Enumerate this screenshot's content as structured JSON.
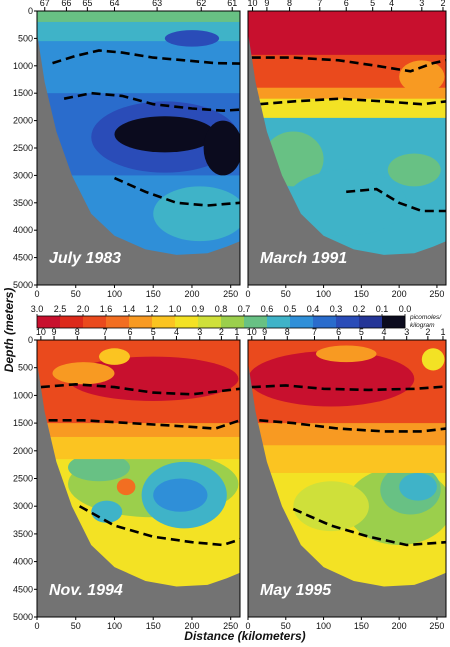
{
  "chart_data": {
    "type": "heatmap",
    "ylabel": "Depth (meters)",
    "xlabel": "Distance (kilometers)",
    "x_ticks": [
      0,
      50,
      100,
      150,
      200,
      250
    ],
    "x_range": [
      0,
      262
    ],
    "y_ticks": [
      0,
      500,
      1000,
      1500,
      2000,
      2500,
      3000,
      3500,
      4000,
      4500,
      5000
    ],
    "y_range": [
      0,
      5000
    ],
    "colorbar": {
      "unit": "picomoles/ kilogram",
      "labels": [
        "3.0",
        "2.5",
        "2.0",
        "1.6",
        "1.4",
        "1.2",
        "1.0",
        "0.9",
        "0.8",
        "0.7",
        "0.6",
        "0.5",
        "0.4",
        "0.3",
        "0.2",
        "0.1",
        "0.0"
      ],
      "colors": [
        "#c8102e",
        "#dc2a1a",
        "#ea4a1d",
        "#f26e21",
        "#f89a22",
        "#fbc421",
        "#f3e224",
        "#cfe03a",
        "#9bcf4c",
        "#68c184",
        "#3fb3c8",
        "#2f8fd8",
        "#2a6ccc",
        "#2a4cb8",
        "#243597",
        "#0b0b1e"
      ]
    },
    "bottom_profile": [
      [
        0,
        400
      ],
      [
        10,
        1300
      ],
      [
        25,
        2200
      ],
      [
        45,
        3000
      ],
      [
        70,
        3700
      ],
      [
        100,
        4100
      ],
      [
        140,
        4350
      ],
      [
        180,
        4450
      ],
      [
        220,
        4420
      ],
      [
        245,
        4300
      ],
      [
        262,
        4200
      ]
    ],
    "panels": [
      {
        "title": "July 1983",
        "stations": [
          "67",
          "66",
          "65",
          "64",
          "63",
          "62",
          "61"
        ],
        "station_x": [
          10,
          38,
          65,
          100,
          155,
          212,
          252
        ],
        "color_layers": [
          {
            "color": "#2f8fd8",
            "shape": "band",
            "top": 0,
            "bottom": 1500
          },
          {
            "color": "#3fb3c8",
            "shape": "band",
            "top": 0,
            "bottom": 550
          },
          {
            "color": "#68c184",
            "shape": "band",
            "top": 0,
            "bottom": 200
          },
          {
            "color": "#2a6ccc",
            "shape": "band",
            "top": 1500,
            "bottom": 3000
          },
          {
            "color": "#2a4cb8",
            "shape": "blob",
            "x": 165,
            "y": 2300,
            "rx": 95,
            "ry": 650
          },
          {
            "color": "#0b0b1e",
            "shape": "blob",
            "x": 165,
            "y": 2250,
            "rx": 65,
            "ry": 330
          },
          {
            "color": "#0b0b1e",
            "shape": "blob",
            "x": 240,
            "y": 2500,
            "rx": 25,
            "ry": 500
          },
          {
            "color": "#2a4cb8",
            "shape": "blob",
            "x": 200,
            "y": 500,
            "rx": 35,
            "ry": 150
          },
          {
            "color": "#3fb3c8",
            "shape": "blob",
            "x": 210,
            "y": 3700,
            "rx": 60,
            "ry": 500
          }
        ],
        "isolines": [
          [
            [
              20,
              950
            ],
            [
              50,
              820
            ],
            [
              80,
              720
            ],
            [
              110,
              760
            ],
            [
              150,
              850
            ],
            [
              190,
              900
            ],
            [
              230,
              950
            ],
            [
              262,
              960
            ]
          ],
          [
            [
              35,
              1600
            ],
            [
              70,
              1500
            ],
            [
              110,
              1550
            ],
            [
              150,
              1700
            ],
            [
              200,
              1780
            ],
            [
              240,
              1820
            ],
            [
              262,
              1800
            ]
          ],
          [
            [
              100,
              3050
            ],
            [
              140,
              3300
            ],
            [
              180,
              3500
            ],
            [
              220,
              3550
            ],
            [
              262,
              3500
            ]
          ]
        ]
      },
      {
        "title": "March 1991",
        "stations": [
          "10",
          "9",
          "8",
          "7",
          "6",
          "5",
          "4",
          "3",
          "2"
        ],
        "station_x": [
          6,
          25,
          55,
          95,
          130,
          165,
          190,
          230,
          258
        ],
        "color_layers": [
          {
            "color": "#9bcf4c",
            "shape": "band",
            "top": 2600,
            "bottom": 5000
          },
          {
            "color": "#3fb3c8",
            "shape": "band",
            "top": 1800,
            "bottom": 5000
          },
          {
            "color": "#68c184",
            "shape": "blob",
            "x": 60,
            "y": 2700,
            "rx": 40,
            "ry": 500
          },
          {
            "color": "#68c184",
            "shape": "blob",
            "x": 220,
            "y": 2900,
            "rx": 35,
            "ry": 300
          },
          {
            "color": "#3fb3c8",
            "shape": "blob",
            "x": 130,
            "y": 3500,
            "rx": 80,
            "ry": 600
          },
          {
            "color": "#f3e224",
            "shape": "band",
            "top": 1500,
            "bottom": 1950
          },
          {
            "color": "#f89a22",
            "shape": "band",
            "top": 1200,
            "bottom": 1600
          },
          {
            "color": "#ea4a1d",
            "shape": "band",
            "top": 0,
            "bottom": 1400
          },
          {
            "color": "#c8102e",
            "shape": "band",
            "top": 0,
            "bottom": 800
          },
          {
            "color": "#f89a22",
            "shape": "blob",
            "x": 230,
            "y": 1200,
            "rx": 30,
            "ry": 300
          }
        ],
        "isolines": [
          [
            [
              5,
              850
            ],
            [
              60,
              850
            ],
            [
              120,
              900
            ],
            [
              170,
              1000
            ],
            [
              215,
              1100
            ],
            [
              245,
              950
            ],
            [
              262,
              900
            ]
          ],
          [
            [
              15,
              1700
            ],
            [
              60,
              1650
            ],
            [
              120,
              1600
            ],
            [
              180,
              1650
            ],
            [
              230,
              1700
            ],
            [
              262,
              1650
            ]
          ],
          [
            [
              130,
              3300
            ],
            [
              170,
              3250
            ],
            [
              200,
              3500
            ],
            [
              230,
              3650
            ],
            [
              262,
              3650
            ]
          ]
        ]
      },
      {
        "title": "Nov. 1994",
        "stations": [
          "10",
          "9",
          "8",
          "7",
          "6",
          "5",
          "4",
          "3",
          "2",
          "1"
        ],
        "station_x": [
          5,
          22,
          52,
          88,
          120,
          150,
          180,
          210,
          238,
          258
        ],
        "color_layers": [
          {
            "color": "#f3e224",
            "shape": "band",
            "top": 2100,
            "bottom": 5000
          },
          {
            "color": "#9bcf4c",
            "shape": "blob",
            "x": 150,
            "y": 2600,
            "rx": 110,
            "ry": 600
          },
          {
            "color": "#68c184",
            "shape": "blob",
            "x": 80,
            "y": 2300,
            "rx": 40,
            "ry": 250
          },
          {
            "color": "#3fb3c8",
            "shape": "blob",
            "x": 190,
            "y": 2800,
            "rx": 55,
            "ry": 600
          },
          {
            "color": "#2f8fd8",
            "shape": "blob",
            "x": 185,
            "y": 2800,
            "rx": 35,
            "ry": 300
          },
          {
            "color": "#3fb3c8",
            "shape": "blob",
            "x": 90,
            "y": 3100,
            "rx": 20,
            "ry": 200
          },
          {
            "color": "#f26e21",
            "shape": "blob",
            "x": 115,
            "y": 2650,
            "rx": 12,
            "ry": 150
          },
          {
            "color": "#fbc421",
            "shape": "band",
            "top": 1500,
            "bottom": 2150
          },
          {
            "color": "#f89a22",
            "shape": "band",
            "top": 1200,
            "bottom": 1750
          },
          {
            "color": "#ea4a1d",
            "shape": "band",
            "top": 0,
            "bottom": 1500
          },
          {
            "color": "#c8102e",
            "shape": "blob",
            "x": 150,
            "y": 700,
            "rx": 110,
            "ry": 400
          },
          {
            "color": "#f89a22",
            "shape": "blob",
            "x": 60,
            "y": 600,
            "rx": 40,
            "ry": 200
          },
          {
            "color": "#fbc421",
            "shape": "blob",
            "x": 100,
            "y": 300,
            "rx": 20,
            "ry": 150
          }
        ],
        "isolines": [
          [
            [
              5,
              850
            ],
            [
              50,
              800
            ],
            [
              100,
              850
            ],
            [
              150,
              950
            ],
            [
              200,
              980
            ],
            [
              262,
              880
            ]
          ],
          [
            [
              15,
              1450
            ],
            [
              60,
              1450
            ],
            [
              120,
              1500
            ],
            [
              180,
              1550
            ],
            [
              230,
              1600
            ],
            [
              262,
              1450
            ]
          ],
          [
            [
              55,
              3000
            ],
            [
              100,
              3350
            ],
            [
              150,
              3550
            ],
            [
              200,
              3650
            ],
            [
              240,
              3700
            ],
            [
              262,
              3600
            ]
          ]
        ]
      },
      {
        "title": "May 1995",
        "stations": [
          "10",
          "9",
          "8",
          "7",
          "6",
          "5",
          "4",
          "3",
          "2",
          "1"
        ],
        "station_x": [
          5,
          22,
          52,
          88,
          120,
          150,
          180,
          210,
          238,
          258
        ],
        "color_layers": [
          {
            "color": "#f3e224",
            "shape": "band",
            "top": 2200,
            "bottom": 5000
          },
          {
            "color": "#9bcf4c",
            "shape": "blob",
            "x": 200,
            "y": 3000,
            "rx": 70,
            "ry": 700
          },
          {
            "color": "#68c184",
            "shape": "blob",
            "x": 215,
            "y": 2700,
            "rx": 40,
            "ry": 450
          },
          {
            "color": "#3fb3c8",
            "shape": "blob",
            "x": 225,
            "y": 2650,
            "rx": 25,
            "ry": 250
          },
          {
            "color": "#cfe03a",
            "shape": "blob",
            "x": 110,
            "y": 3000,
            "rx": 50,
            "ry": 450
          },
          {
            "color": "#fbc421",
            "shape": "band",
            "top": 1700,
            "bottom": 2400
          },
          {
            "color": "#f89a22",
            "shape": "band",
            "top": 1300,
            "bottom": 1900
          },
          {
            "color": "#ea4a1d",
            "shape": "band",
            "top": 0,
            "bottom": 1500
          },
          {
            "color": "#c8102e",
            "shape": "blob",
            "x": 110,
            "y": 700,
            "rx": 110,
            "ry": 500
          },
          {
            "color": "#f89a22",
            "shape": "blob",
            "x": 130,
            "y": 250,
            "rx": 40,
            "ry": 150
          },
          {
            "color": "#f3e224",
            "shape": "blob",
            "x": 245,
            "y": 350,
            "rx": 15,
            "ry": 200
          }
        ],
        "isolines": [
          [
            [
              5,
              850
            ],
            [
              50,
              820
            ],
            [
              100,
              880
            ],
            [
              160,
              900
            ],
            [
              220,
              880
            ],
            [
              262,
              840
            ]
          ],
          [
            [
              15,
              1450
            ],
            [
              60,
              1500
            ],
            [
              120,
              1600
            ],
            [
              180,
              1650
            ],
            [
              230,
              1650
            ],
            [
              262,
              1600
            ]
          ],
          [
            [
              60,
              3050
            ],
            [
              110,
              3350
            ],
            [
              160,
              3550
            ],
            [
              210,
              3700
            ],
            [
              262,
              3650
            ]
          ]
        ]
      }
    ]
  }
}
